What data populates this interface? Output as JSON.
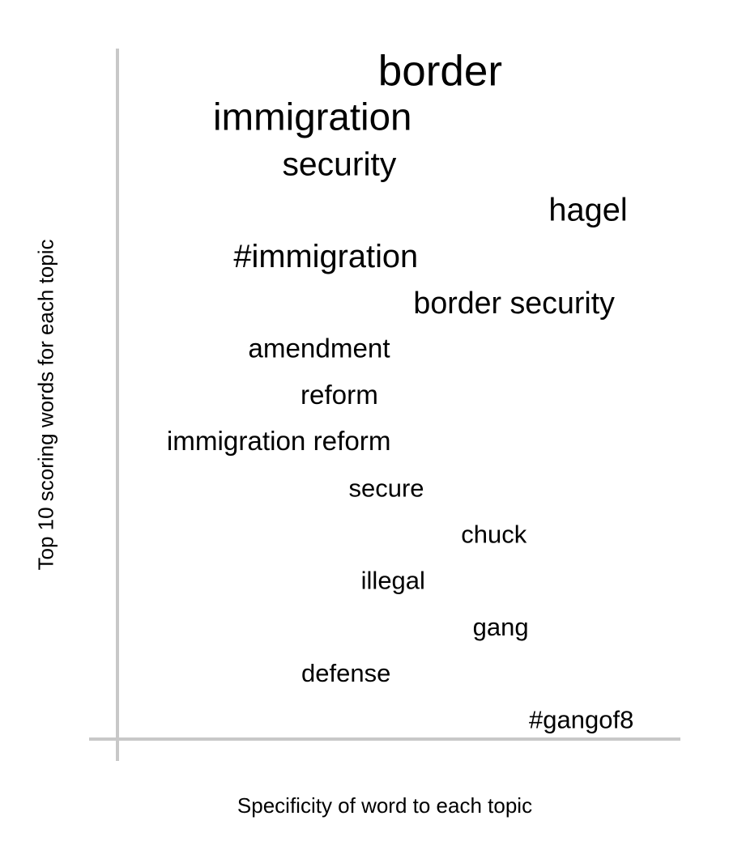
{
  "chart_data": {
    "type": "scatter",
    "xlabel": "Specificity of word to each topic",
    "ylabel": "Top 10 scoring words for each topic",
    "xlim": [
      0,
      1
    ],
    "grid": false,
    "legend": "none",
    "words": [
      {
        "label": "border",
        "x": 0.48,
        "rank": 1,
        "weight": 1.0
      },
      {
        "label": "immigration",
        "x": 0.29,
        "rank": 2,
        "weight": 0.9
      },
      {
        "label": "security",
        "x": 0.33,
        "rank": 3,
        "weight": 0.78
      },
      {
        "label": "hagel",
        "x": 0.7,
        "rank": 4,
        "weight": 0.76
      },
      {
        "label": "#immigration",
        "x": 0.31,
        "rank": 5,
        "weight": 0.76
      },
      {
        "label": "border security",
        "x": 0.59,
        "rank": 6,
        "weight": 0.72
      },
      {
        "label": "amendment",
        "x": 0.3,
        "rank": 7,
        "weight": 0.64
      },
      {
        "label": "reform",
        "x": 0.33,
        "rank": 8,
        "weight": 0.64
      },
      {
        "label": "immigration reform",
        "x": 0.24,
        "rank": 9,
        "weight": 0.64
      },
      {
        "label": "secure",
        "x": 0.4,
        "rank": 10,
        "weight": 0.6
      },
      {
        "label": "chuck",
        "x": 0.56,
        "rank": 11,
        "weight": 0.6
      },
      {
        "label": "illegal",
        "x": 0.41,
        "rank": 12,
        "weight": 0.6
      },
      {
        "label": "gang",
        "x": 0.57,
        "rank": 13,
        "weight": 0.6
      },
      {
        "label": "defense",
        "x": 0.34,
        "rank": 14,
        "weight": 0.6
      },
      {
        "label": "#gangof8",
        "x": 0.69,
        "rank": 15,
        "weight": 0.6
      }
    ]
  }
}
